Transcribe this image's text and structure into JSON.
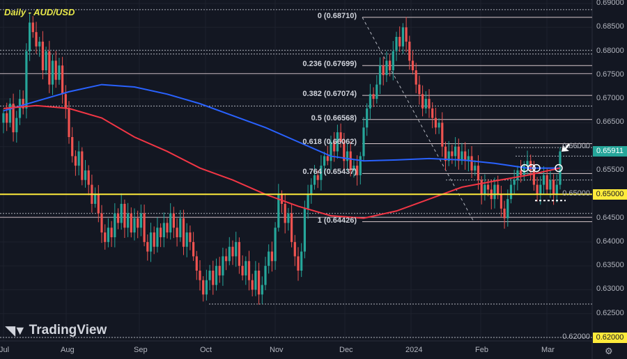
{
  "chart_data": {
    "type": "candlestick",
    "title": "Daily - AUD/USD",
    "symbol": "AUD/USD",
    "timeframe": "Daily",
    "ylim": [
      0.62,
      0.69
    ],
    "yticks": [
      "0.69000",
      "0.68500",
      "0.68000",
      "0.67500",
      "0.67000",
      "0.66500",
      "0.66000",
      "0.65500",
      "0.65000",
      "0.64500",
      "0.64000",
      "0.63500",
      "0.63000",
      "0.62500",
      "0.62000"
    ],
    "xticks": [
      "Jul",
      "Aug",
      "Sep",
      "Oct",
      "Nov",
      "Dec",
      "2024",
      "Feb",
      "Mar"
    ],
    "closes": [
      0.667,
      0.665,
      0.669,
      0.663,
      0.666,
      0.67,
      0.668,
      0.68,
      0.686,
      0.684,
      0.681,
      0.682,
      0.676,
      0.68,
      0.673,
      0.678,
      0.674,
      0.677,
      0.671,
      0.668,
      0.662,
      0.658,
      0.656,
      0.659,
      0.653,
      0.655,
      0.652,
      0.648,
      0.65,
      0.646,
      0.642,
      0.64,
      0.643,
      0.641,
      0.646,
      0.644,
      0.648,
      0.643,
      0.646,
      0.642,
      0.645,
      0.643,
      0.646,
      0.64,
      0.638,
      0.642,
      0.639,
      0.643,
      0.641,
      0.644,
      0.642,
      0.646,
      0.643,
      0.641,
      0.645,
      0.639,
      0.642,
      0.64,
      0.637,
      0.634,
      0.632,
      0.629,
      0.632,
      0.634,
      0.631,
      0.635,
      0.633,
      0.637,
      0.636,
      0.639,
      0.637,
      0.64,
      0.635,
      0.633,
      0.636,
      0.632,
      0.63,
      0.634,
      0.629,
      0.631,
      0.635,
      0.638,
      0.636,
      0.643,
      0.65,
      0.648,
      0.644,
      0.646,
      0.64,
      0.637,
      0.634,
      0.638,
      0.647,
      0.65,
      0.652,
      0.654,
      0.653,
      0.656,
      0.658,
      0.657,
      0.661,
      0.659,
      0.663,
      0.661,
      0.657,
      0.659,
      0.655,
      0.656,
      0.654,
      0.658,
      0.664,
      0.668,
      0.671,
      0.67,
      0.673,
      0.677,
      0.675,
      0.678,
      0.676,
      0.68,
      0.683,
      0.681,
      0.685,
      0.682,
      0.678,
      0.676,
      0.673,
      0.671,
      0.668,
      0.67,
      0.668,
      0.666,
      0.664,
      0.665,
      0.66,
      0.657,
      0.659,
      0.658,
      0.66,
      0.657,
      0.659,
      0.657,
      0.658,
      0.655,
      0.656,
      0.653,
      0.65,
      0.652,
      0.651,
      0.649,
      0.652,
      0.65,
      0.647,
      0.645,
      0.649,
      0.652,
      0.653,
      0.655,
      0.654,
      0.656,
      0.657,
      0.655,
      0.652,
      0.65,
      0.652,
      0.654,
      0.651,
      0.653,
      0.65,
      0.652,
      0.659
    ],
    "moving_averages": [
      {
        "color": "#2962ff",
        "values": [
          0.6675,
          0.6695,
          0.6715,
          0.673,
          0.6725,
          0.671,
          0.669,
          0.6665,
          0.664,
          0.661,
          0.658,
          0.657,
          0.6572,
          0.6575,
          0.6572,
          0.6565,
          0.6555,
          0.6555
        ]
      },
      {
        "color": "#f23645",
        "values": [
          0.668,
          0.6686,
          0.668,
          0.666,
          0.662,
          0.659,
          0.6555,
          0.653,
          0.65,
          0.6475,
          0.6455,
          0.645,
          0.6465,
          0.649,
          0.6515,
          0.6528,
          0.654,
          0.6555
        ]
      }
    ],
    "fibonacci": [
      {
        "ratio": "0",
        "price": 0.6871,
        "label": "0 (0.68710)"
      },
      {
        "ratio": "0.236",
        "price": 0.67699,
        "label": "0.236 (0.67699)"
      },
      {
        "ratio": "0.382",
        "price": 0.67074,
        "label": "0.382 (0.67074)"
      },
      {
        "ratio": "0.5",
        "price": 0.66568,
        "label": "0.5 (0.66568)"
      },
      {
        "ratio": "0.618",
        "price": 0.66062,
        "label": "0.618 (0.66062)"
      },
      {
        "ratio": "0.764",
        "price": 0.65437,
        "label": "0.764 (0.65437)"
      },
      {
        "ratio": "1",
        "price": 0.64426,
        "label": "1 (0.64426)"
      }
    ],
    "horizontal_levels": [
      {
        "price": 0.65,
        "label": "0.65000",
        "color": "#ffeb3b"
      },
      {
        "price": 0.62,
        "label": "0.62000",
        "color": "#ffeb3b"
      }
    ],
    "last_price": {
      "value": 0.65911,
      "label": "0.65911",
      "color": "#26a69a"
    },
    "colors": {
      "up": "#26a69a",
      "down": "#ef5350",
      "background": "#131722"
    },
    "grid": true
  },
  "branding": {
    "logo_text": "TradingView"
  }
}
